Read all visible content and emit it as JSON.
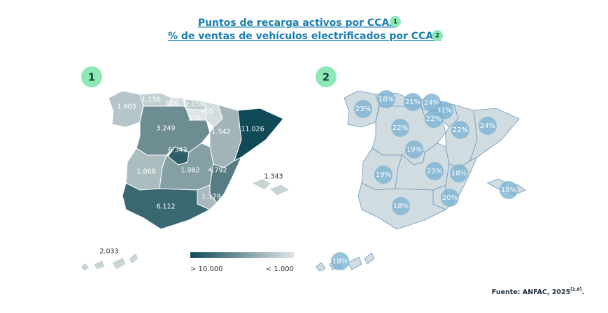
{
  "header": {
    "line1": "Puntos de recarga activos por CCAA",
    "badge1": "1",
    "line2": "% de ventas de vehículos electrificados por CCAA",
    "badge2": "2"
  },
  "map1": {
    "badge": "1",
    "labels": [
      "1.903",
      "1.156",
      "856",
      "2.059",
      "905",
      "310",
      "3.249",
      "1.542",
      "11.026",
      "6.343",
      "1.068",
      "1.982",
      "4.792",
      "1.343",
      "1.179",
      "6.112",
      "2.033"
    ],
    "legend": {
      "high": "> 10.000",
      "low": "< 1.000"
    }
  },
  "map2": {
    "badge": "2",
    "labels": [
      "23%",
      "18%",
      "21%",
      "24%",
      "31%",
      "22%",
      "22%",
      "22%",
      "24%",
      "19%",
      "19%",
      "23%",
      "18%",
      "18%",
      "20%",
      "18%",
      "18%"
    ]
  },
  "source": {
    "text": "Fuente: ANFAC, 2025",
    "ref": "[2,8]",
    "end": "."
  }
}
